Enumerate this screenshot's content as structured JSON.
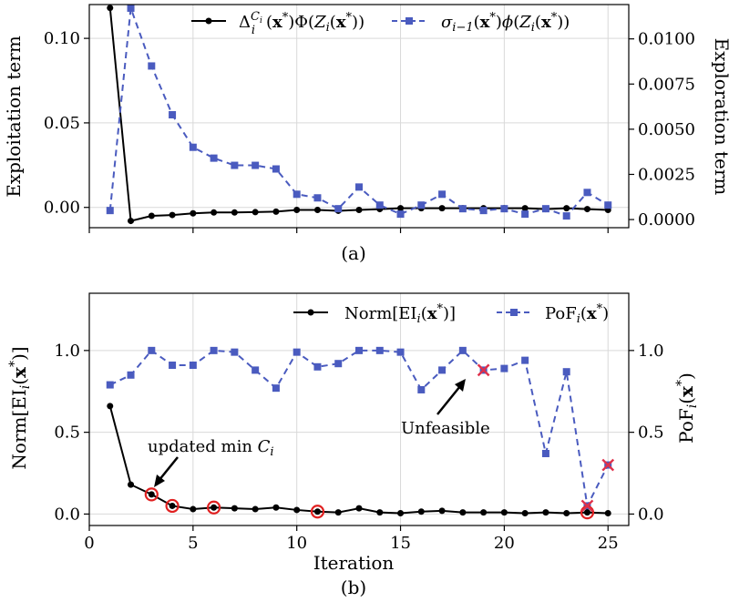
{
  "chart_data": [
    {
      "type": "line",
      "panel_label": "(a)",
      "ylabel": "Exploitation term",
      "y2label": "Exploration term",
      "x": [
        1,
        2,
        3,
        4,
        5,
        6,
        7,
        8,
        9,
        10,
        11,
        12,
        13,
        14,
        15,
        16,
        17,
        18,
        19,
        20,
        21,
        22,
        23,
        24,
        25
      ],
      "ylim": [
        -0.012,
        0.12
      ],
      "y2lim": [
        -0.00045,
        0.0119
      ],
      "yticks": [
        "0.00",
        "0.05",
        "0.10"
      ],
      "y2ticks": [
        "0.0000",
        "0.0025",
        "0.0050",
        "0.0075",
        "0.0100"
      ],
      "series": [
        {
          "name": "Δ_i^{C_i}(x*)Φ(Z_i(x*))",
          "axis": "left",
          "color": "#000000",
          "style": "solid",
          "marker": "circle",
          "values": [
            0.118,
            -0.008,
            -0.005,
            -0.0045,
            -0.0035,
            -0.003,
            -0.003,
            -0.0028,
            -0.0025,
            -0.0015,
            -0.0015,
            -0.002,
            -0.0015,
            -0.001,
            -0.0005,
            -0.0005,
            -0.0005,
            -0.0005,
            -0.0005,
            -0.0005,
            -0.0005,
            -0.001,
            -0.0005,
            -0.001,
            -0.0015
          ]
        },
        {
          "name": "σ_{i−1}(x*)φ(Z_i(x*))",
          "axis": "right",
          "color": "#4a5bbf",
          "style": "dashed",
          "marker": "square",
          "values": [
            0.0005,
            0.0117,
            0.0085,
            0.0058,
            0.004,
            0.0034,
            0.003,
            0.003,
            0.0028,
            0.0014,
            0.0012,
            0.0006,
            0.0018,
            0.0008,
            0.0003,
            0.0008,
            0.0014,
            0.0006,
            0.0005,
            0.0006,
            0.0003,
            0.0006,
            0.0002,
            0.0015,
            0.0008
          ]
        }
      ]
    },
    {
      "type": "line",
      "panel_label": "(b)",
      "xlabel": "Iteration",
      "ylabel": "Norm[EI_i(x*)]",
      "y2label": "PoF_i(x*)",
      "xlim": [
        0,
        26
      ],
      "ylim": [
        -0.07,
        1.35
      ],
      "xticks": [
        "0",
        "5",
        "10",
        "15",
        "20",
        "25"
      ],
      "yticks": [
        "0.0",
        "0.5",
        "1.0"
      ],
      "y2ticks": [
        "0.0",
        "0.5",
        "1.0"
      ],
      "x": [
        1,
        2,
        3,
        4,
        5,
        6,
        7,
        8,
        9,
        10,
        11,
        12,
        13,
        14,
        15,
        16,
        17,
        18,
        19,
        20,
        21,
        22,
        23,
        24,
        25
      ],
      "series": [
        {
          "name": "Norm[EI_i(x*)]",
          "axis": "left",
          "color": "#000000",
          "style": "solid",
          "marker": "circle",
          "values": [
            0.66,
            0.18,
            0.12,
            0.05,
            0.03,
            0.04,
            0.035,
            0.03,
            0.04,
            0.025,
            0.015,
            0.01,
            0.035,
            0.01,
            0.005,
            0.015,
            0.02,
            0.01,
            0.01,
            0.01,
            0.005,
            0.01,
            0.005,
            0.01,
            0.005
          ]
        },
        {
          "name": "PoF_i(x*)",
          "axis": "right",
          "color": "#4a5bbf",
          "style": "dashed",
          "marker": "square",
          "values": [
            0.79,
            0.85,
            1.0,
            0.91,
            0.91,
            1.0,
            0.99,
            0.88,
            0.77,
            0.99,
            0.9,
            0.92,
            1.0,
            1.0,
            0.99,
            0.76,
            0.88,
            1.0,
            0.88,
            0.89,
            0.94,
            0.37,
            0.87,
            0.05,
            0.3
          ]
        }
      ],
      "highlight_circles_x": [
        3,
        4,
        6,
        11,
        24
      ],
      "highlight_color": "#e02020",
      "unfeasible_x": [
        19,
        24,
        25
      ],
      "unfeasible_color": "#e0304a",
      "annotations": [
        {
          "text": "updated min",
          "italic_suffix": "C_i",
          "arrow_to_x": 3
        },
        {
          "text": "Unfeasible",
          "arrow_to_x": 19
        }
      ]
    }
  ]
}
